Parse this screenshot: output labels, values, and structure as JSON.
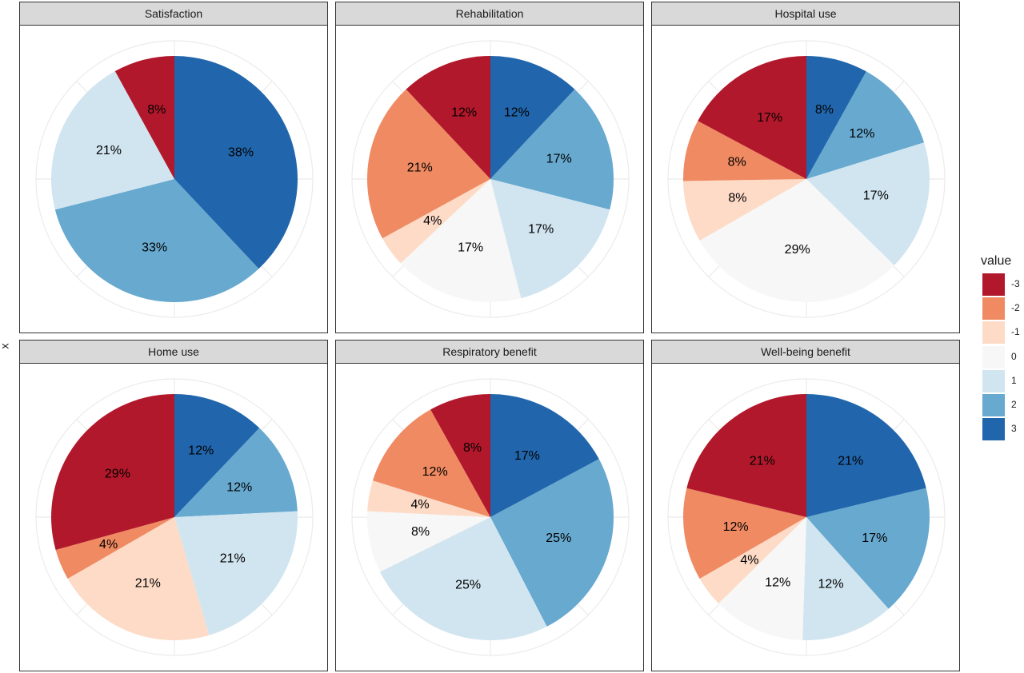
{
  "y_axis_label": "x",
  "legend": {
    "title": "value",
    "items": [
      {
        "label": "-3",
        "color": "#b2182b"
      },
      {
        "label": "-2",
        "color": "#ef8a62"
      },
      {
        "label": "-1",
        "color": "#fddbc7"
      },
      {
        "label": "0",
        "color": "#f7f7f7"
      },
      {
        "label": "1",
        "color": "#d1e5f0"
      },
      {
        "label": "2",
        "color": "#67a9cf"
      },
      {
        "label": "3",
        "color": "#2166ac"
      }
    ]
  },
  "chart_data": {
    "type": "pie",
    "facets": [
      {
        "title": "Satisfaction",
        "slices": [
          {
            "category": "3",
            "value": 38,
            "label": "38%"
          },
          {
            "category": "2",
            "value": 33,
            "label": "33%"
          },
          {
            "category": "1",
            "value": 21,
            "label": "21%"
          },
          {
            "category": "-3",
            "value": 8,
            "label": "8%"
          }
        ]
      },
      {
        "title": "Rehabilitation",
        "slices": [
          {
            "category": "3",
            "value": 12,
            "label": "12%"
          },
          {
            "category": "2",
            "value": 17,
            "label": "17%"
          },
          {
            "category": "1",
            "value": 17,
            "label": "17%"
          },
          {
            "category": "0",
            "value": 17,
            "label": "17%"
          },
          {
            "category": "-1",
            "value": 4,
            "label": "4%"
          },
          {
            "category": "-2",
            "value": 21,
            "label": "21%"
          },
          {
            "category": "-3",
            "value": 12,
            "label": "12%"
          }
        ]
      },
      {
        "title": "Hospital use",
        "slices": [
          {
            "category": "3",
            "value": 8,
            "label": "8%"
          },
          {
            "category": "2",
            "value": 12,
            "label": "12%"
          },
          {
            "category": "1",
            "value": 17,
            "label": "17%"
          },
          {
            "category": "0",
            "value": 29,
            "label": "29%"
          },
          {
            "category": "-1",
            "value": 8,
            "label": "8%"
          },
          {
            "category": "-2",
            "value": 8,
            "label": "8%"
          },
          {
            "category": "-3",
            "value": 17,
            "label": "17%"
          }
        ]
      },
      {
        "title": "Home use",
        "slices": [
          {
            "category": "3",
            "value": 12,
            "label": "12%"
          },
          {
            "category": "2",
            "value": 12,
            "label": "12%"
          },
          {
            "category": "1",
            "value": 21,
            "label": "21%"
          },
          {
            "category": "-1",
            "value": 21,
            "label": "21%"
          },
          {
            "category": "-2",
            "value": 4,
            "label": "4%"
          },
          {
            "category": "-3",
            "value": 29,
            "label": "29%"
          }
        ]
      },
      {
        "title": "Respiratory benefit",
        "slices": [
          {
            "category": "3",
            "value": 17,
            "label": "17%"
          },
          {
            "category": "2",
            "value": 25,
            "label": "25%"
          },
          {
            "category": "1",
            "value": 25,
            "label": "25%"
          },
          {
            "category": "0",
            "value": 8,
            "label": "8%"
          },
          {
            "category": "-1",
            "value": 4,
            "label": "4%"
          },
          {
            "category": "-2",
            "value": 12,
            "label": "12%"
          },
          {
            "category": "-3",
            "value": 8,
            "label": "8%"
          }
        ]
      },
      {
        "title": "Well-being benefit",
        "slices": [
          {
            "category": "3",
            "value": 21,
            "label": "21%"
          },
          {
            "category": "2",
            "value": 17,
            "label": "17%"
          },
          {
            "category": "1",
            "value": 12,
            "label": "12%"
          },
          {
            "category": "0",
            "value": 12,
            "label": "12%"
          },
          {
            "category": "-1",
            "value": 4,
            "label": "4%"
          },
          {
            "category": "-2",
            "value": 12,
            "label": "12%"
          },
          {
            "category": "-3",
            "value": 21,
            "label": "21%"
          }
        ]
      }
    ]
  }
}
